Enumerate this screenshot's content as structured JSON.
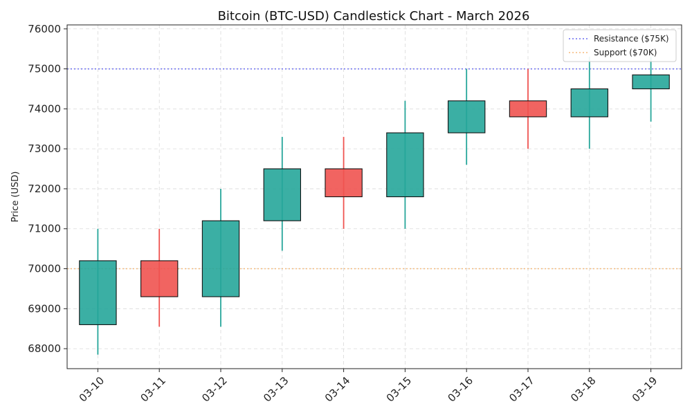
{
  "chart_data": {
    "type": "candlestick",
    "title": "Bitcoin (BTC-USD) Candlestick Chart - March 2026",
    "xlabel": "",
    "ylabel": "Price (USD)",
    "ylim": [
      67500,
      76100
    ],
    "yticks": [
      68000,
      69000,
      70000,
      71000,
      72000,
      73000,
      74000,
      75000,
      76000
    ],
    "grid": true,
    "legend_position": "top-right",
    "categories": [
      "03-10",
      "03-11",
      "03-12",
      "03-13",
      "03-14",
      "03-15",
      "03-16",
      "03-17",
      "03-18",
      "03-19"
    ],
    "candles": [
      {
        "date": "03-10",
        "open": 68600,
        "high": 71000,
        "low": 67850,
        "close": 70200
      },
      {
        "date": "03-11",
        "open": 70200,
        "high": 71000,
        "low": 68550,
        "close": 69300
      },
      {
        "date": "03-12",
        "open": 69300,
        "high": 72000,
        "low": 68550,
        "close": 71200
      },
      {
        "date": "03-13",
        "open": 71200,
        "high": 73300,
        "low": 70450,
        "close": 72500
      },
      {
        "date": "03-14",
        "open": 72500,
        "high": 73300,
        "low": 71000,
        "close": 71800
      },
      {
        "date": "03-15",
        "open": 71800,
        "high": 74200,
        "low": 71000,
        "close": 73400
      },
      {
        "date": "03-16",
        "open": 73400,
        "high": 75000,
        "low": 72600,
        "close": 74200
      },
      {
        "date": "03-17",
        "open": 74200,
        "high": 75000,
        "low": 73000,
        "close": 73800
      },
      {
        "date": "03-18",
        "open": 73800,
        "high": 75300,
        "low": 73000,
        "close": 74500
      },
      {
        "date": "03-19",
        "open": 74500,
        "high": 75300,
        "low": 73680,
        "close": 74850
      }
    ],
    "reference_lines": [
      {
        "name": "Resistance ($75K)",
        "value": 75000,
        "color": "#6a6cf0"
      },
      {
        "name": "Support ($70K)",
        "value": 70000,
        "color": "#f5b97a"
      }
    ],
    "colors": {
      "up": "#26a69a",
      "down": "#ef5350"
    }
  }
}
